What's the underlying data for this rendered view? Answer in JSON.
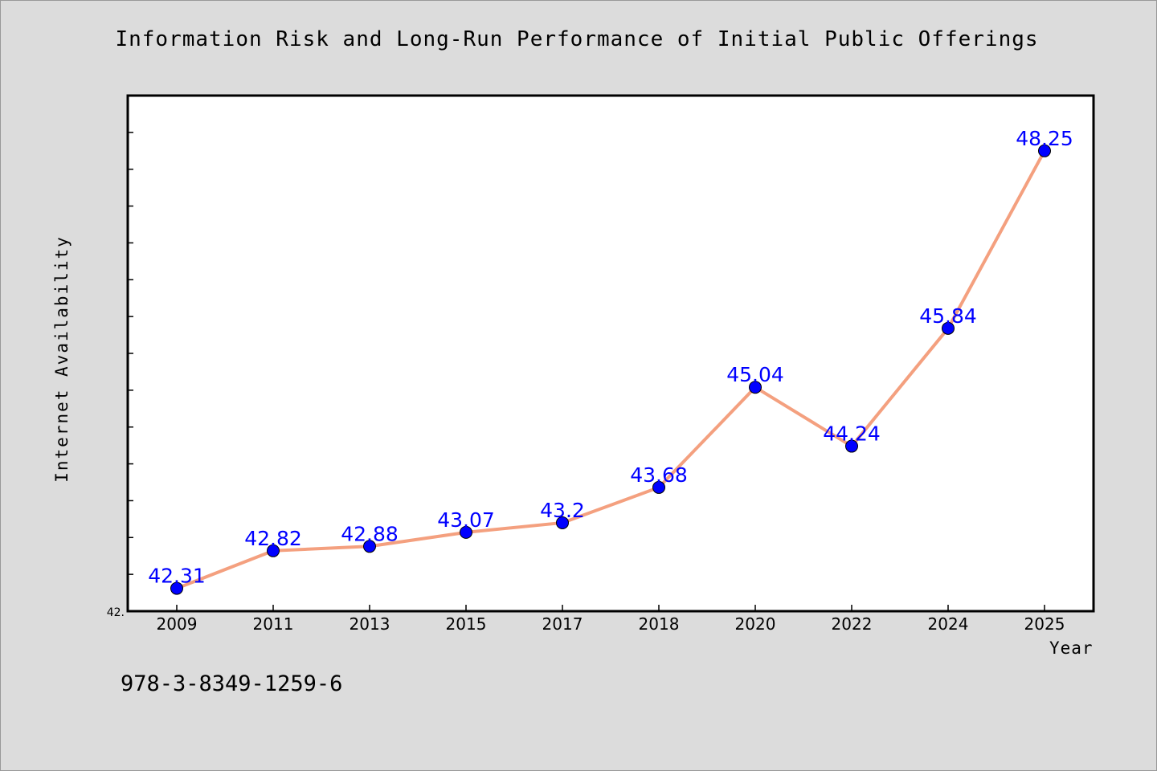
{
  "chart_data": {
    "type": "line",
    "title": "Information Risk and Long-Run Performance of Initial Public Offerings",
    "xlabel": "Year",
    "ylabel": "Internet Availability",
    "categories": [
      "2009",
      "2011",
      "2013",
      "2015",
      "2017",
      "2018",
      "2020",
      "2022",
      "2024",
      "2025"
    ],
    "series": [
      {
        "values": [
          42.31,
          42.82,
          42.88,
          43.07,
          43.2,
          43.68,
          45.04,
          44.24,
          45.84,
          48.25
        ],
        "labels": [
          "42.31",
          "42.82",
          "42.88",
          "43.07",
          "43.2",
          "43.68",
          "45.04",
          "44.24",
          "45.84",
          "48.25"
        ]
      }
    ],
    "ylim": [
      42.0,
      49.0
    ],
    "y_tick_labels": [
      "42."
    ],
    "line_color": "#f4a07f",
    "marker_color": "#0000ff",
    "label_color": "#0000ff",
    "grid": false,
    "legend": "none"
  },
  "footnote": "978-3-8349-1259-6"
}
